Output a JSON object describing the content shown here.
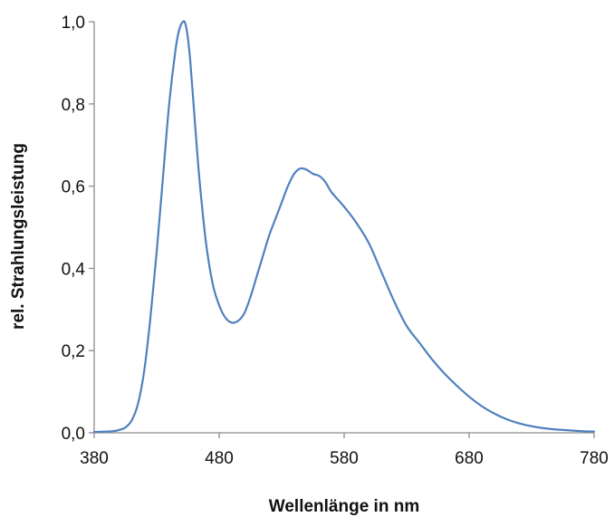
{
  "chart_data": {
    "type": "line",
    "title": "",
    "xlabel": "Wellenlänge in nm",
    "ylabel": "rel. Strahlungsleistung",
    "xlim": [
      380,
      780
    ],
    "ylim": [
      0,
      1
    ],
    "x_ticks": [
      380,
      480,
      580,
      680,
      780
    ],
    "x_tick_labels": [
      "380",
      "480",
      "580",
      "680",
      "780"
    ],
    "y_ticks": [
      0,
      0.2,
      0.4,
      0.6,
      0.8,
      1.0
    ],
    "y_tick_labels": [
      "0,0",
      "0,2",
      "0,4",
      "0,6",
      "0,8",
      "1,0"
    ],
    "grid": false,
    "legend": "none",
    "series": [
      {
        "color": "#4f81bd",
        "x": [
          380,
          395,
          400,
          405,
          410,
          415,
          420,
          425,
          430,
          435,
          440,
          445,
          448,
          451,
          453,
          455,
          457,
          460,
          463,
          466,
          470,
          475,
          480,
          485,
          490,
          495,
          500,
          505,
          510,
          515,
          520,
          525,
          530,
          535,
          540,
          545,
          550,
          555,
          560,
          565,
          570,
          580,
          590,
          600,
          610,
          620,
          630,
          640,
          650,
          660,
          670,
          680,
          690,
          700,
          710,
          720,
          730,
          740,
          750,
          760,
          770,
          780
        ],
        "y": [
          0.002,
          0.004,
          0.007,
          0.013,
          0.03,
          0.07,
          0.15,
          0.28,
          0.44,
          0.62,
          0.8,
          0.93,
          0.98,
          1.0,
          0.995,
          0.96,
          0.9,
          0.78,
          0.66,
          0.56,
          0.45,
          0.36,
          0.31,
          0.28,
          0.268,
          0.272,
          0.29,
          0.33,
          0.38,
          0.43,
          0.48,
          0.52,
          0.56,
          0.6,
          0.63,
          0.643,
          0.64,
          0.63,
          0.625,
          0.61,
          0.585,
          0.55,
          0.51,
          0.46,
          0.39,
          0.32,
          0.26,
          0.22,
          0.18,
          0.145,
          0.115,
          0.088,
          0.065,
          0.047,
          0.033,
          0.023,
          0.016,
          0.011,
          0.008,
          0.006,
          0.004,
          0.003
        ]
      }
    ]
  }
}
